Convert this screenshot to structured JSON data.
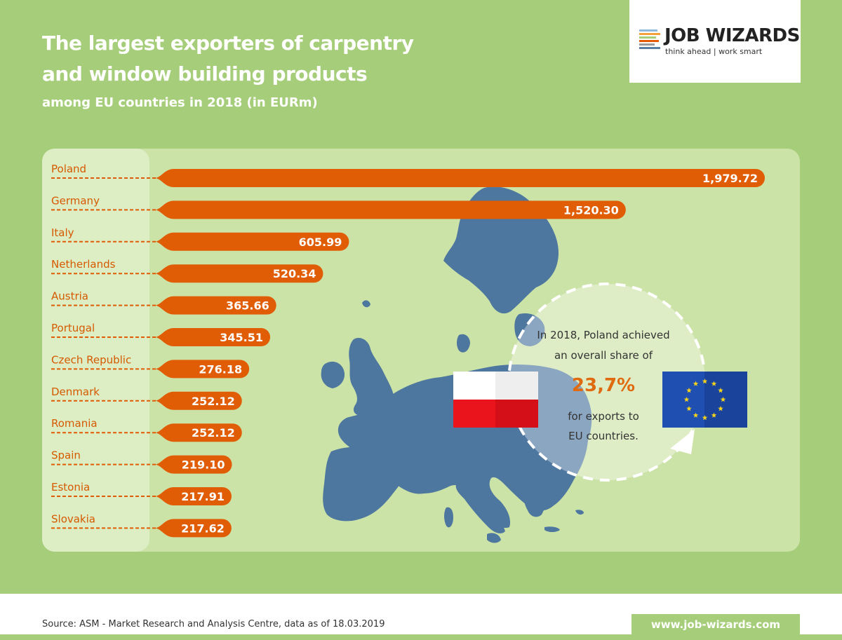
{
  "title_line1": "The largest exporters of carpentry",
  "title_line2": "and window building products",
  "subtitle": "among EU countries in 2018 (in EURm)",
  "logo": {
    "name": "JOB WIZARDS",
    "tagline": "think ahead | work smart"
  },
  "colors": {
    "background": "#a6cd79",
    "panel": "#cce3a8",
    "bar": "#e05c05",
    "label_text": "#d55a00",
    "map": "#4e779f",
    "callout_value": "#e06a10"
  },
  "chart_data": {
    "type": "bar",
    "orientation": "horizontal",
    "categories": [
      "Poland",
      "Germany",
      "Italy",
      "Netherlands",
      "Austria",
      "Portugal",
      "Czech Republic",
      "Denmark",
      "Romania",
      "Spain",
      "Estonia",
      "Slovakia"
    ],
    "values": [
      1979.72,
      1520.3,
      605.99,
      520.34,
      365.66,
      345.51,
      276.18,
      252.12,
      252.12,
      219.1,
      217.91,
      217.62
    ],
    "value_labels": [
      "1,979.72",
      "1,520.30",
      "605.99",
      "520.34",
      "365.66",
      "345.51",
      "276.18",
      "252.12",
      "252.12",
      "219.10",
      "217.91",
      "217.62"
    ],
    "title": "The largest exporters of carpentry and window building products",
    "subtitle": "among EU countries in 2018 (in EURm)"
  },
  "callout": {
    "line1": "In 2018, Poland achieved",
    "line2": "an overall share of",
    "value": "23,7%",
    "line3": "for exports to",
    "line4": "EU countries."
  },
  "footer": {
    "source": "Source: ASM - Market Research and Analysis Centre, data as of 18.03.2019",
    "url": "www.job-wizards.com"
  }
}
